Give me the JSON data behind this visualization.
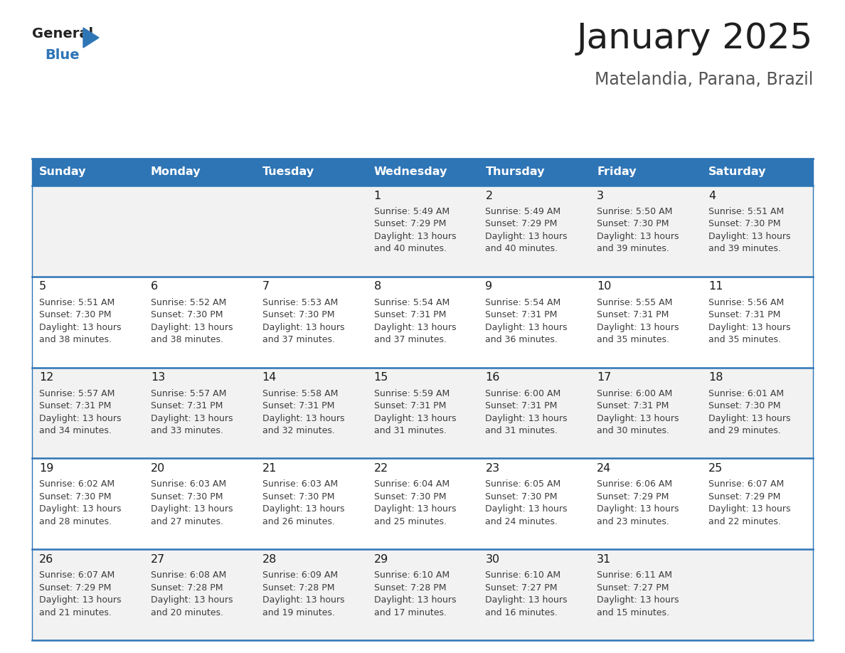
{
  "title": "January 2025",
  "subtitle": "Matelandia, Parana, Brazil",
  "days_of_week": [
    "Sunday",
    "Monday",
    "Tuesday",
    "Wednesday",
    "Thursday",
    "Friday",
    "Saturday"
  ],
  "header_bg": "#2E75B6",
  "header_text_color": "#FFFFFF",
  "row_bg_odd": "#F2F2F2",
  "row_bg_even": "#FFFFFF",
  "cell_text_color": "#3D3D3D",
  "day_num_color": "#1F1F1F",
  "border_color": "#2E75B6",
  "title_color": "#1F1F1F",
  "subtitle_color": "#555555",
  "general_blue_color": "#2E75B6",
  "calendar_data": [
    [
      null,
      null,
      null,
      {
        "day": 1,
        "sunrise": "5:49 AM",
        "sunset": "7:29 PM",
        "daylight_line1": "Daylight: 13 hours",
        "daylight_line2": "and 40 minutes."
      },
      {
        "day": 2,
        "sunrise": "5:49 AM",
        "sunset": "7:29 PM",
        "daylight_line1": "Daylight: 13 hours",
        "daylight_line2": "and 40 minutes."
      },
      {
        "day": 3,
        "sunrise": "5:50 AM",
        "sunset": "7:30 PM",
        "daylight_line1": "Daylight: 13 hours",
        "daylight_line2": "and 39 minutes."
      },
      {
        "day": 4,
        "sunrise": "5:51 AM",
        "sunset": "7:30 PM",
        "daylight_line1": "Daylight: 13 hours",
        "daylight_line2": "and 39 minutes."
      }
    ],
    [
      {
        "day": 5,
        "sunrise": "5:51 AM",
        "sunset": "7:30 PM",
        "daylight_line1": "Daylight: 13 hours",
        "daylight_line2": "and 38 minutes."
      },
      {
        "day": 6,
        "sunrise": "5:52 AM",
        "sunset": "7:30 PM",
        "daylight_line1": "Daylight: 13 hours",
        "daylight_line2": "and 38 minutes."
      },
      {
        "day": 7,
        "sunrise": "5:53 AM",
        "sunset": "7:30 PM",
        "daylight_line1": "Daylight: 13 hours",
        "daylight_line2": "and 37 minutes."
      },
      {
        "day": 8,
        "sunrise": "5:54 AM",
        "sunset": "7:31 PM",
        "daylight_line1": "Daylight: 13 hours",
        "daylight_line2": "and 37 minutes."
      },
      {
        "day": 9,
        "sunrise": "5:54 AM",
        "sunset": "7:31 PM",
        "daylight_line1": "Daylight: 13 hours",
        "daylight_line2": "and 36 minutes."
      },
      {
        "day": 10,
        "sunrise": "5:55 AM",
        "sunset": "7:31 PM",
        "daylight_line1": "Daylight: 13 hours",
        "daylight_line2": "and 35 minutes."
      },
      {
        "day": 11,
        "sunrise": "5:56 AM",
        "sunset": "7:31 PM",
        "daylight_line1": "Daylight: 13 hours",
        "daylight_line2": "and 35 minutes."
      }
    ],
    [
      {
        "day": 12,
        "sunrise": "5:57 AM",
        "sunset": "7:31 PM",
        "daylight_line1": "Daylight: 13 hours",
        "daylight_line2": "and 34 minutes."
      },
      {
        "day": 13,
        "sunrise": "5:57 AM",
        "sunset": "7:31 PM",
        "daylight_line1": "Daylight: 13 hours",
        "daylight_line2": "and 33 minutes."
      },
      {
        "day": 14,
        "sunrise": "5:58 AM",
        "sunset": "7:31 PM",
        "daylight_line1": "Daylight: 13 hours",
        "daylight_line2": "and 32 minutes."
      },
      {
        "day": 15,
        "sunrise": "5:59 AM",
        "sunset": "7:31 PM",
        "daylight_line1": "Daylight: 13 hours",
        "daylight_line2": "and 31 minutes."
      },
      {
        "day": 16,
        "sunrise": "6:00 AM",
        "sunset": "7:31 PM",
        "daylight_line1": "Daylight: 13 hours",
        "daylight_line2": "and 31 minutes."
      },
      {
        "day": 17,
        "sunrise": "6:00 AM",
        "sunset": "7:31 PM",
        "daylight_line1": "Daylight: 13 hours",
        "daylight_line2": "and 30 minutes."
      },
      {
        "day": 18,
        "sunrise": "6:01 AM",
        "sunset": "7:30 PM",
        "daylight_line1": "Daylight: 13 hours",
        "daylight_line2": "and 29 minutes."
      }
    ],
    [
      {
        "day": 19,
        "sunrise": "6:02 AM",
        "sunset": "7:30 PM",
        "daylight_line1": "Daylight: 13 hours",
        "daylight_line2": "and 28 minutes."
      },
      {
        "day": 20,
        "sunrise": "6:03 AM",
        "sunset": "7:30 PM",
        "daylight_line1": "Daylight: 13 hours",
        "daylight_line2": "and 27 minutes."
      },
      {
        "day": 21,
        "sunrise": "6:03 AM",
        "sunset": "7:30 PM",
        "daylight_line1": "Daylight: 13 hours",
        "daylight_line2": "and 26 minutes."
      },
      {
        "day": 22,
        "sunrise": "6:04 AM",
        "sunset": "7:30 PM",
        "daylight_line1": "Daylight: 13 hours",
        "daylight_line2": "and 25 minutes."
      },
      {
        "day": 23,
        "sunrise": "6:05 AM",
        "sunset": "7:30 PM",
        "daylight_line1": "Daylight: 13 hours",
        "daylight_line2": "and 24 minutes."
      },
      {
        "day": 24,
        "sunrise": "6:06 AM",
        "sunset": "7:29 PM",
        "daylight_line1": "Daylight: 13 hours",
        "daylight_line2": "and 23 minutes."
      },
      {
        "day": 25,
        "sunrise": "6:07 AM",
        "sunset": "7:29 PM",
        "daylight_line1": "Daylight: 13 hours",
        "daylight_line2": "and 22 minutes."
      }
    ],
    [
      {
        "day": 26,
        "sunrise": "6:07 AM",
        "sunset": "7:29 PM",
        "daylight_line1": "Daylight: 13 hours",
        "daylight_line2": "and 21 minutes."
      },
      {
        "day": 27,
        "sunrise": "6:08 AM",
        "sunset": "7:28 PM",
        "daylight_line1": "Daylight: 13 hours",
        "daylight_line2": "and 20 minutes."
      },
      {
        "day": 28,
        "sunrise": "6:09 AM",
        "sunset": "7:28 PM",
        "daylight_line1": "Daylight: 13 hours",
        "daylight_line2": "and 19 minutes."
      },
      {
        "day": 29,
        "sunrise": "6:10 AM",
        "sunset": "7:28 PM",
        "daylight_line1": "Daylight: 13 hours",
        "daylight_line2": "and 17 minutes."
      },
      {
        "day": 30,
        "sunrise": "6:10 AM",
        "sunset": "7:27 PM",
        "daylight_line1": "Daylight: 13 hours",
        "daylight_line2": "and 16 minutes."
      },
      {
        "day": 31,
        "sunrise": "6:11 AM",
        "sunset": "7:27 PM",
        "daylight_line1": "Daylight: 13 hours",
        "daylight_line2": "and 15 minutes."
      },
      null
    ]
  ]
}
